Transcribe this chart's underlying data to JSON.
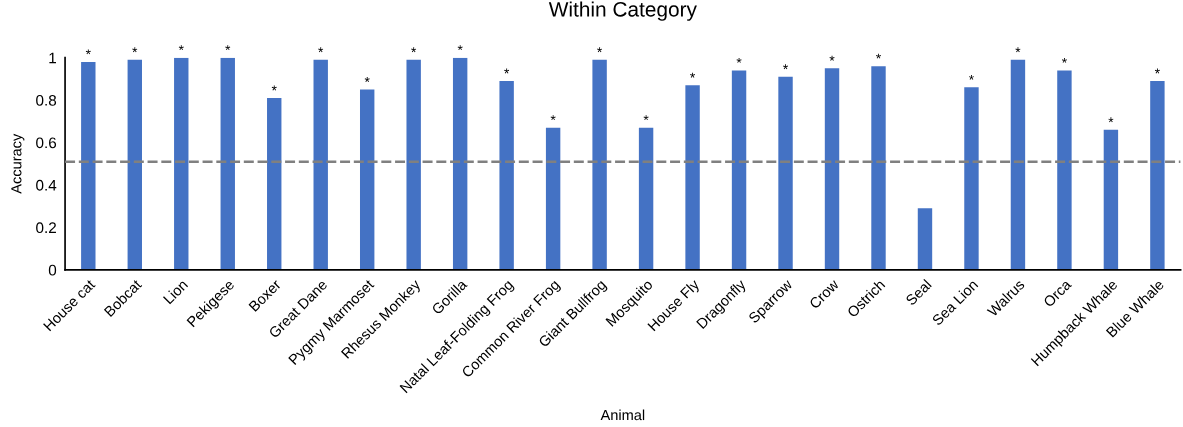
{
  "chart_data": {
    "type": "bar",
    "title": "Within Category",
    "xlabel": "Animal",
    "ylabel": "Accuracy",
    "categories": [
      "House cat",
      "Bobcat",
      "Lion",
      "Pekigese",
      "Boxer",
      "Great Dane",
      "Pygmy Marmoset",
      "Rhesus Monkey",
      "Gorilla",
      "Natal Leaf-Folding Frog",
      "Common River Frog",
      "Giant Bullfrog",
      "Mosquito",
      "House Fly",
      "Dragonfly",
      "Sparrow",
      "Crow",
      "Ostrich",
      "Seal",
      "Sea Lion",
      "Walrus",
      "Orca",
      "Humpback Whale",
      "Blue Whale"
    ],
    "values": [
      0.98,
      0.99,
      1,
      1,
      0.81,
      0.99,
      0.85,
      0.99,
      1,
      0.89,
      0.67,
      0.99,
      0.67,
      0.87,
      0.94,
      0.91,
      0.95,
      0.96,
      0.29,
      0.86,
      0.99,
      0.94,
      0.66,
      0.89
    ],
    "value_labels": [
      "*",
      "*",
      "*",
      "*",
      "*",
      "*",
      "*",
      "*",
      "*",
      "*",
      "*",
      "*",
      "*",
      "*",
      "*",
      "*",
      "*",
      "*",
      null,
      "*",
      "*",
      "*",
      "*",
      "*"
    ],
    "color": "#4472c4",
    "ylim": [
      0,
      1
    ],
    "yticks": [
      0,
      0.2,
      0.4,
      0.6,
      0.8,
      1
    ],
    "ref_lines": [
      {
        "axis": "y",
        "value": 0.51,
        "color": "#808080",
        "line_style": "dashed"
      }
    ],
    "grid": false,
    "legend": false
  }
}
